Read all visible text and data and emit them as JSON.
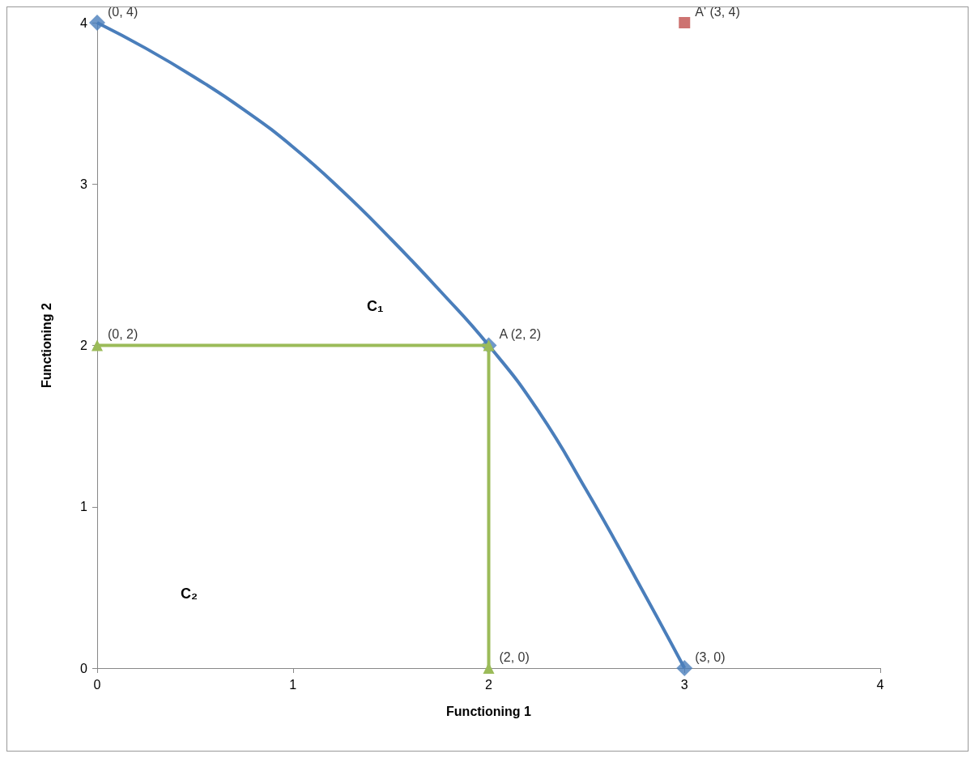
{
  "chart_data": {
    "type": "line",
    "xlabel": "Functioning 1",
    "ylabel": "Functioning 2",
    "xlim": [
      0,
      4
    ],
    "xticks": [
      0,
      1,
      2,
      3,
      4
    ],
    "ylim": [
      0,
      4
    ],
    "yticks": [
      0,
      1,
      2,
      3,
      4
    ],
    "grid": false,
    "series": [
      {
        "color": "#4a7ebb",
        "marker": "none",
        "x": [
          0,
          0.25,
          0.5,
          0.75,
          1,
          1.25,
          1.5,
          1.75,
          2,
          2.25,
          2.5,
          2.75,
          3
        ],
        "values": [
          4,
          3.84,
          3.66,
          3.46,
          3.23,
          2.96,
          2.66,
          2.34,
          2,
          1.6,
          1.1,
          0.56,
          0
        ]
      },
      {
        "type": "scatter",
        "color": "#4a7ebb",
        "marker": "diamond",
        "x": [
          0,
          2,
          3
        ],
        "values": [
          4,
          2,
          0
        ]
      },
      {
        "color": "#9bbb59",
        "marker": "triangle",
        "x": [
          0,
          2,
          2
        ],
        "values": [
          2,
          2,
          0
        ]
      },
      {
        "type": "scatter",
        "color": "#c0504d",
        "marker": "square",
        "x": [
          3
        ],
        "values": [
          4
        ]
      }
    ],
    "annotations": [
      {
        "text": "(0, 4)",
        "x": 0,
        "y": 4
      },
      {
        "text": "(0, 2)",
        "x": 0,
        "y": 2
      },
      {
        "text": "A (2, 2)",
        "x": 2,
        "y": 2
      },
      {
        "text": "(2, 0)",
        "x": 2,
        "y": 0
      },
      {
        "text": "(3, 0)",
        "x": 3,
        "y": 0
      },
      {
        "text": "A' (3, 4)",
        "x": 3,
        "y": 4
      },
      "C₁",
      "C₂"
    ]
  }
}
